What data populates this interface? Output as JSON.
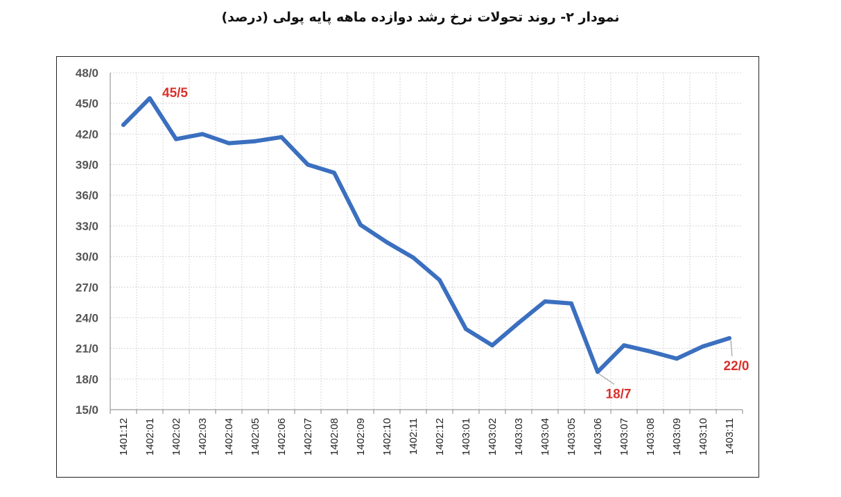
{
  "chart_data": {
    "type": "line",
    "title": "نمودار ۲- روند تحولات نرخ رشد دوازده ماهه پایه پولی (درصد)",
    "xlabel": "",
    "ylabel": "",
    "categories": [
      "1401:12",
      "1402:01",
      "1402:02",
      "1402:03",
      "1402:04",
      "1402:05",
      "1402:06",
      "1402:07",
      "1402:08",
      "1402:09",
      "1402:10",
      "1402:11",
      "1402:12",
      "1403:01",
      "1403:02",
      "1403:03",
      "1403:04",
      "1403:05",
      "1403:06",
      "1403:07",
      "1403:08",
      "1403:09",
      "1403:10",
      "1403:11"
    ],
    "series": [
      {
        "values": [
          42.9,
          45.5,
          41.5,
          42.0,
          41.1,
          41.3,
          41.7,
          39.0,
          38.2,
          33.1,
          31.4,
          29.9,
          27.7,
          22.9,
          21.3,
          23.5,
          25.6,
          25.4,
          18.7,
          21.3,
          20.7,
          20.0,
          21.2,
          22.0
        ],
        "color": "#3b6fbf"
      }
    ],
    "ylim": [
      15,
      48
    ],
    "yticks": [
      15,
      18,
      21,
      24,
      27,
      30,
      33,
      36,
      39,
      42,
      45,
      48
    ],
    "ytick_labels": [
      "15/0",
      "18/0",
      "21/0",
      "24/0",
      "27/0",
      "30/0",
      "33/0",
      "36/0",
      "39/0",
      "42/0",
      "45/0",
      "48/0"
    ],
    "grid": true,
    "annotations": [
      {
        "index": 1,
        "text": "45/5",
        "color": "#d9302c"
      },
      {
        "index": 18,
        "text": "18/7",
        "color": "#d9302c"
      },
      {
        "index": 23,
        "text": "22/0",
        "color": "#d9302c"
      }
    ]
  }
}
